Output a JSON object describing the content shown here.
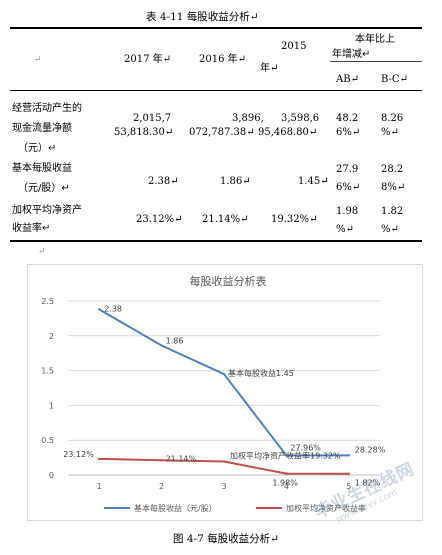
{
  "table_caption": "表 4-11  每股收益分析↵",
  "table": {
    "header_mark": "↵",
    "col_2017": "2017 年↵",
    "col_2016": "2016 年↵",
    "col_2015_line1": "2015",
    "col_2015_line2": "年↵",
    "group_line1": "本年比上",
    "group_line2": "年增减↵",
    "col_ab": "AB↵",
    "col_bc": "B-C↵",
    "rows": [
      {
        "label": [
          "经营活动产生的",
          "现金流量净额",
          "（元）↵"
        ],
        "v2017": [
          "2,015,7",
          "53,818.30↵"
        ],
        "v2016": [
          "3,896,",
          "072,787.38↵"
        ],
        "v2015": [
          "3,598,6",
          "95,468.80↵"
        ],
        "ab": [
          "48.2",
          "6%↵"
        ],
        "bc": [
          "8.26",
          "%↵"
        ]
      },
      {
        "label": [
          "基本每股收益",
          "（元/股）↵"
        ],
        "v2017": [
          "2.38↵"
        ],
        "v2016": [
          "1.86↵"
        ],
        "v2015": [
          "1.45↵"
        ],
        "ab": [
          "27.9",
          "6%↵"
        ],
        "bc": [
          "28.2",
          "8%↵"
        ]
      },
      {
        "label": [
          "加权平均净资产",
          "收益率↵"
        ],
        "v2017": [
          "23.12%↵"
        ],
        "v2016": [
          "21.14%↵"
        ],
        "v2015": [
          "19.32%↵"
        ],
        "ab": [
          "1.98",
          "%↵"
        ],
        "bc": [
          "1.82",
          "%↵"
        ]
      }
    ]
  },
  "paragraph_mark": "↵",
  "chart_data": {
    "type": "line",
    "title": "每股收益分析表",
    "x": [
      1,
      2,
      3,
      4,
      5
    ],
    "xticks": [
      "1",
      "2",
      "3",
      "4",
      "5"
    ],
    "ylim": [
      0,
      2.5
    ],
    "yticks": [
      "0",
      "0.5",
      "1",
      "1.5",
      "2",
      "2.5"
    ],
    "grid": true,
    "legend_position": "bottom",
    "series": [
      {
        "name": "基本每股收益（元/股）",
        "color": "#4f81bd",
        "values": [
          2.38,
          1.86,
          1.45,
          0.2796,
          0.2828
        ],
        "labels": [
          "2.38",
          "1.86",
          "基本每股收益1.45",
          "27.96%",
          "28.28%"
        ]
      },
      {
        "name": "加权平均净资产收益率",
        "color": "#c0504d",
        "values": [
          0.2312,
          0.2114,
          0.1932,
          0.0198,
          0.0182
        ],
        "labels": [
          "23.12%",
          "21.14%",
          "加权平均净资产收益率19.32%",
          "1.98%",
          "1.82%"
        ]
      }
    ]
  },
  "figure_caption": "图 4-7   每股收益分析↵",
  "watermark": {
    "line1": "毕业生在线网",
    "line2": "www.sbvv.com"
  }
}
